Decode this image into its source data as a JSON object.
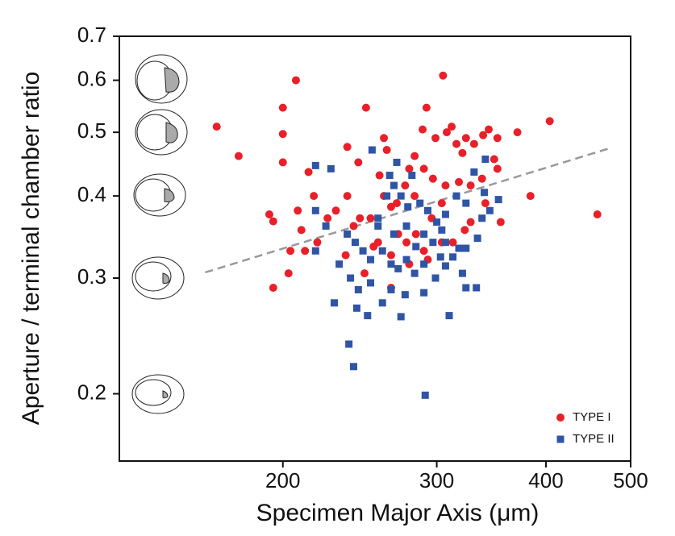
{
  "chart_data": {
    "type": "scatter",
    "x_label": "Specimen Major Axis (μm)",
    "y_label": "Aperture / terminal chamber ratio",
    "xlim": [
      130,
      500
    ],
    "ylim": [
      0.158,
      0.7
    ],
    "xticks": [
      200,
      300,
      400,
      500
    ],
    "yticks": [
      0.2,
      0.3,
      0.4,
      0.5,
      0.6,
      0.7
    ],
    "log_x": true,
    "log_y": true,
    "legend": "lower right",
    "trend": {
      "x": [
        163,
        476
      ],
      "y": [
        0.306,
        0.474
      ],
      "color": "#999999"
    },
    "series": [
      {
        "name": "TYPE I",
        "color": "#e8202a",
        "marker": "circle",
        "x": [
          168,
          178,
          207,
          200,
          200,
          200,
          193,
          195,
          195,
          203,
          204,
          214,
          217,
          208,
          210,
          212,
          219,
          225,
          230,
          237,
          249,
          244,
          237,
          241,
          236,
          248,
          254,
          261,
          263,
          258,
          261,
          266,
          266,
          271,
          276,
          279,
          283,
          292,
          305,
          289,
          299,
          308,
          312,
          316,
          321,
          324,
          331,
          339,
          344,
          352,
          349,
          352,
          338,
          328,
          318,
          307,
          297,
          290,
          283,
          304,
          296,
          284,
          277,
          290,
          304,
          313,
          293,
          279,
          266,
          257,
          252,
          245,
          371,
          384,
          404,
          458,
          355,
          341,
          328,
          323,
          270
        ],
        "values": [
          0.51,
          0.46,
          0.6,
          0.545,
          0.497,
          0.45,
          0.375,
          0.366,
          0.29,
          0.305,
          0.33,
          0.435,
          0.4,
          0.38,
          0.355,
          0.33,
          0.34,
          0.37,
          0.38,
          0.475,
          0.545,
          0.45,
          0.4,
          0.36,
          0.325,
          0.305,
          0.335,
          0.49,
          0.47,
          0.43,
          0.4,
          0.385,
          0.29,
          0.35,
          0.415,
          0.44,
          0.46,
          0.545,
          0.61,
          0.505,
          0.49,
          0.5,
          0.51,
          0.48,
          0.465,
          0.49,
          0.48,
          0.495,
          0.505,
          0.49,
          0.455,
          0.44,
          0.425,
          0.415,
          0.42,
          0.415,
          0.425,
          0.44,
          0.4,
          0.39,
          0.37,
          0.35,
          0.34,
          0.33,
          0.34,
          0.34,
          0.32,
          0.315,
          0.325,
          0.34,
          0.37,
          0.37,
          0.5,
          0.4,
          0.52,
          0.375,
          0.365,
          0.39,
          0.365,
          0.355,
          0.39
        ]
      },
      {
        "name": "TYPE II",
        "color": "#2f55a4",
        "marker": "square",
        "x": [
          218,
          227,
          218,
          224,
          218,
          253,
          257,
          263,
          268,
          273,
          278,
          287,
          293,
          300,
          304,
          297,
          290,
          284,
          277,
          271,
          266,
          260,
          252,
          247,
          242,
          237,
          232,
          239,
          244,
          252,
          260,
          266,
          273,
          276,
          283,
          290,
          299,
          307,
          310,
          313,
          324,
          333,
          334,
          338,
          345,
          353,
          340,
          331,
          341,
          324,
          316,
          307,
          281,
          270,
          265,
          243,
          250,
          229,
          238,
          241,
          291,
          318,
          303,
          290,
          307,
          277,
          268,
          257,
          321,
          324
        ],
        "values": [
          0.445,
          0.44,
          0.38,
          0.36,
          0.33,
          0.47,
          0.37,
          0.4,
          0.415,
          0.4,
          0.385,
          0.39,
          0.38,
          0.365,
          0.355,
          0.34,
          0.35,
          0.335,
          0.32,
          0.31,
          0.315,
          0.33,
          0.32,
          0.33,
          0.34,
          0.35,
          0.315,
          0.3,
          0.288,
          0.295,
          0.275,
          0.288,
          0.262,
          0.283,
          0.305,
          0.285,
          0.3,
          0.313,
          0.263,
          0.323,
          0.333,
          0.29,
          0.345,
          0.37,
          0.38,
          0.395,
          0.405,
          0.435,
          0.455,
          0.39,
          0.4,
          0.375,
          0.43,
          0.45,
          0.43,
          0.27,
          0.263,
          0.275,
          0.238,
          0.22,
          0.199,
          0.333,
          0.323,
          0.315,
          0.34,
          0.36,
          0.35,
          0.36,
          0.305,
          0.29
        ]
      }
    ]
  }
}
